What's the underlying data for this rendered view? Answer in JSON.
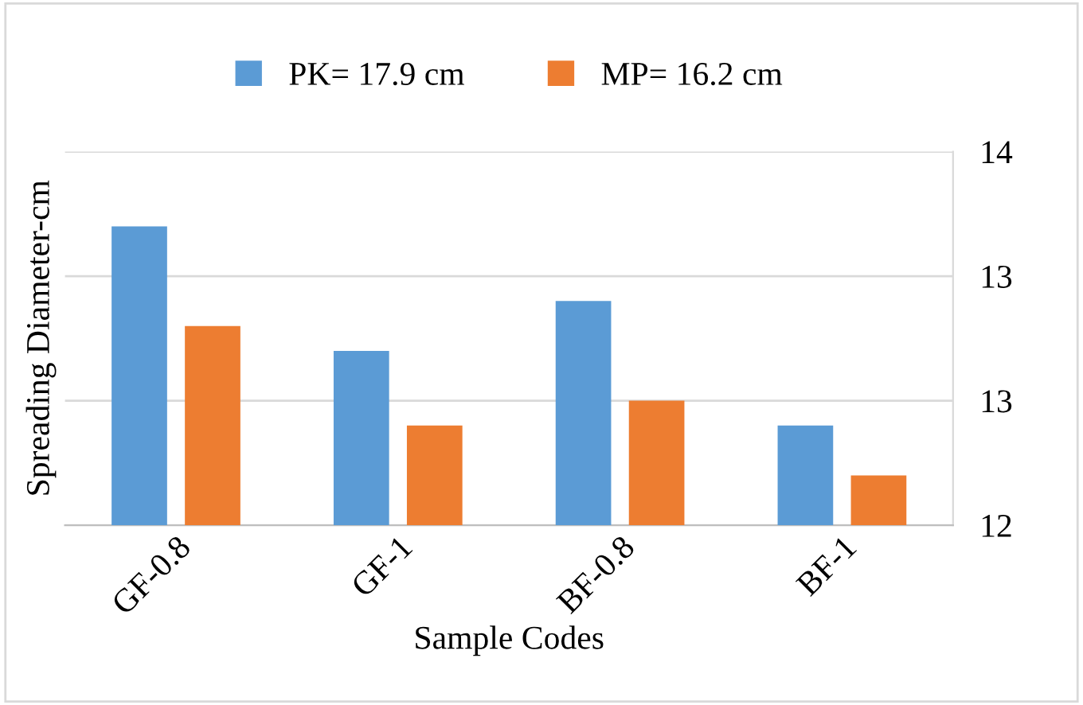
{
  "chart_data": {
    "type": "bar",
    "xlabel": "Sample Codes",
    "ylabel": "Spreading Diameter-cm",
    "categories": [
      "GF-0.8",
      "GF-1",
      "BF-0.8",
      "BF-1"
    ],
    "series": [
      {
        "name": "PK= 17.9 cm",
        "color": "#5b9bd5",
        "values": [
          13.2,
          12.7,
          12.9,
          12.4
        ]
      },
      {
        "name": "MP= 16.2 cm",
        "color": "#ed7d31",
        "values": [
          12.8,
          12.4,
          12.5,
          12.2
        ]
      }
    ],
    "ylim": [
      12,
      13.5
    ],
    "yticks": [
      12,
      {
        "value": 12.5,
        "label": "13"
      },
      13,
      {
        "value": 13.5,
        "label": "14"
      }
    ],
    "grid": "y",
    "legend": "top"
  }
}
